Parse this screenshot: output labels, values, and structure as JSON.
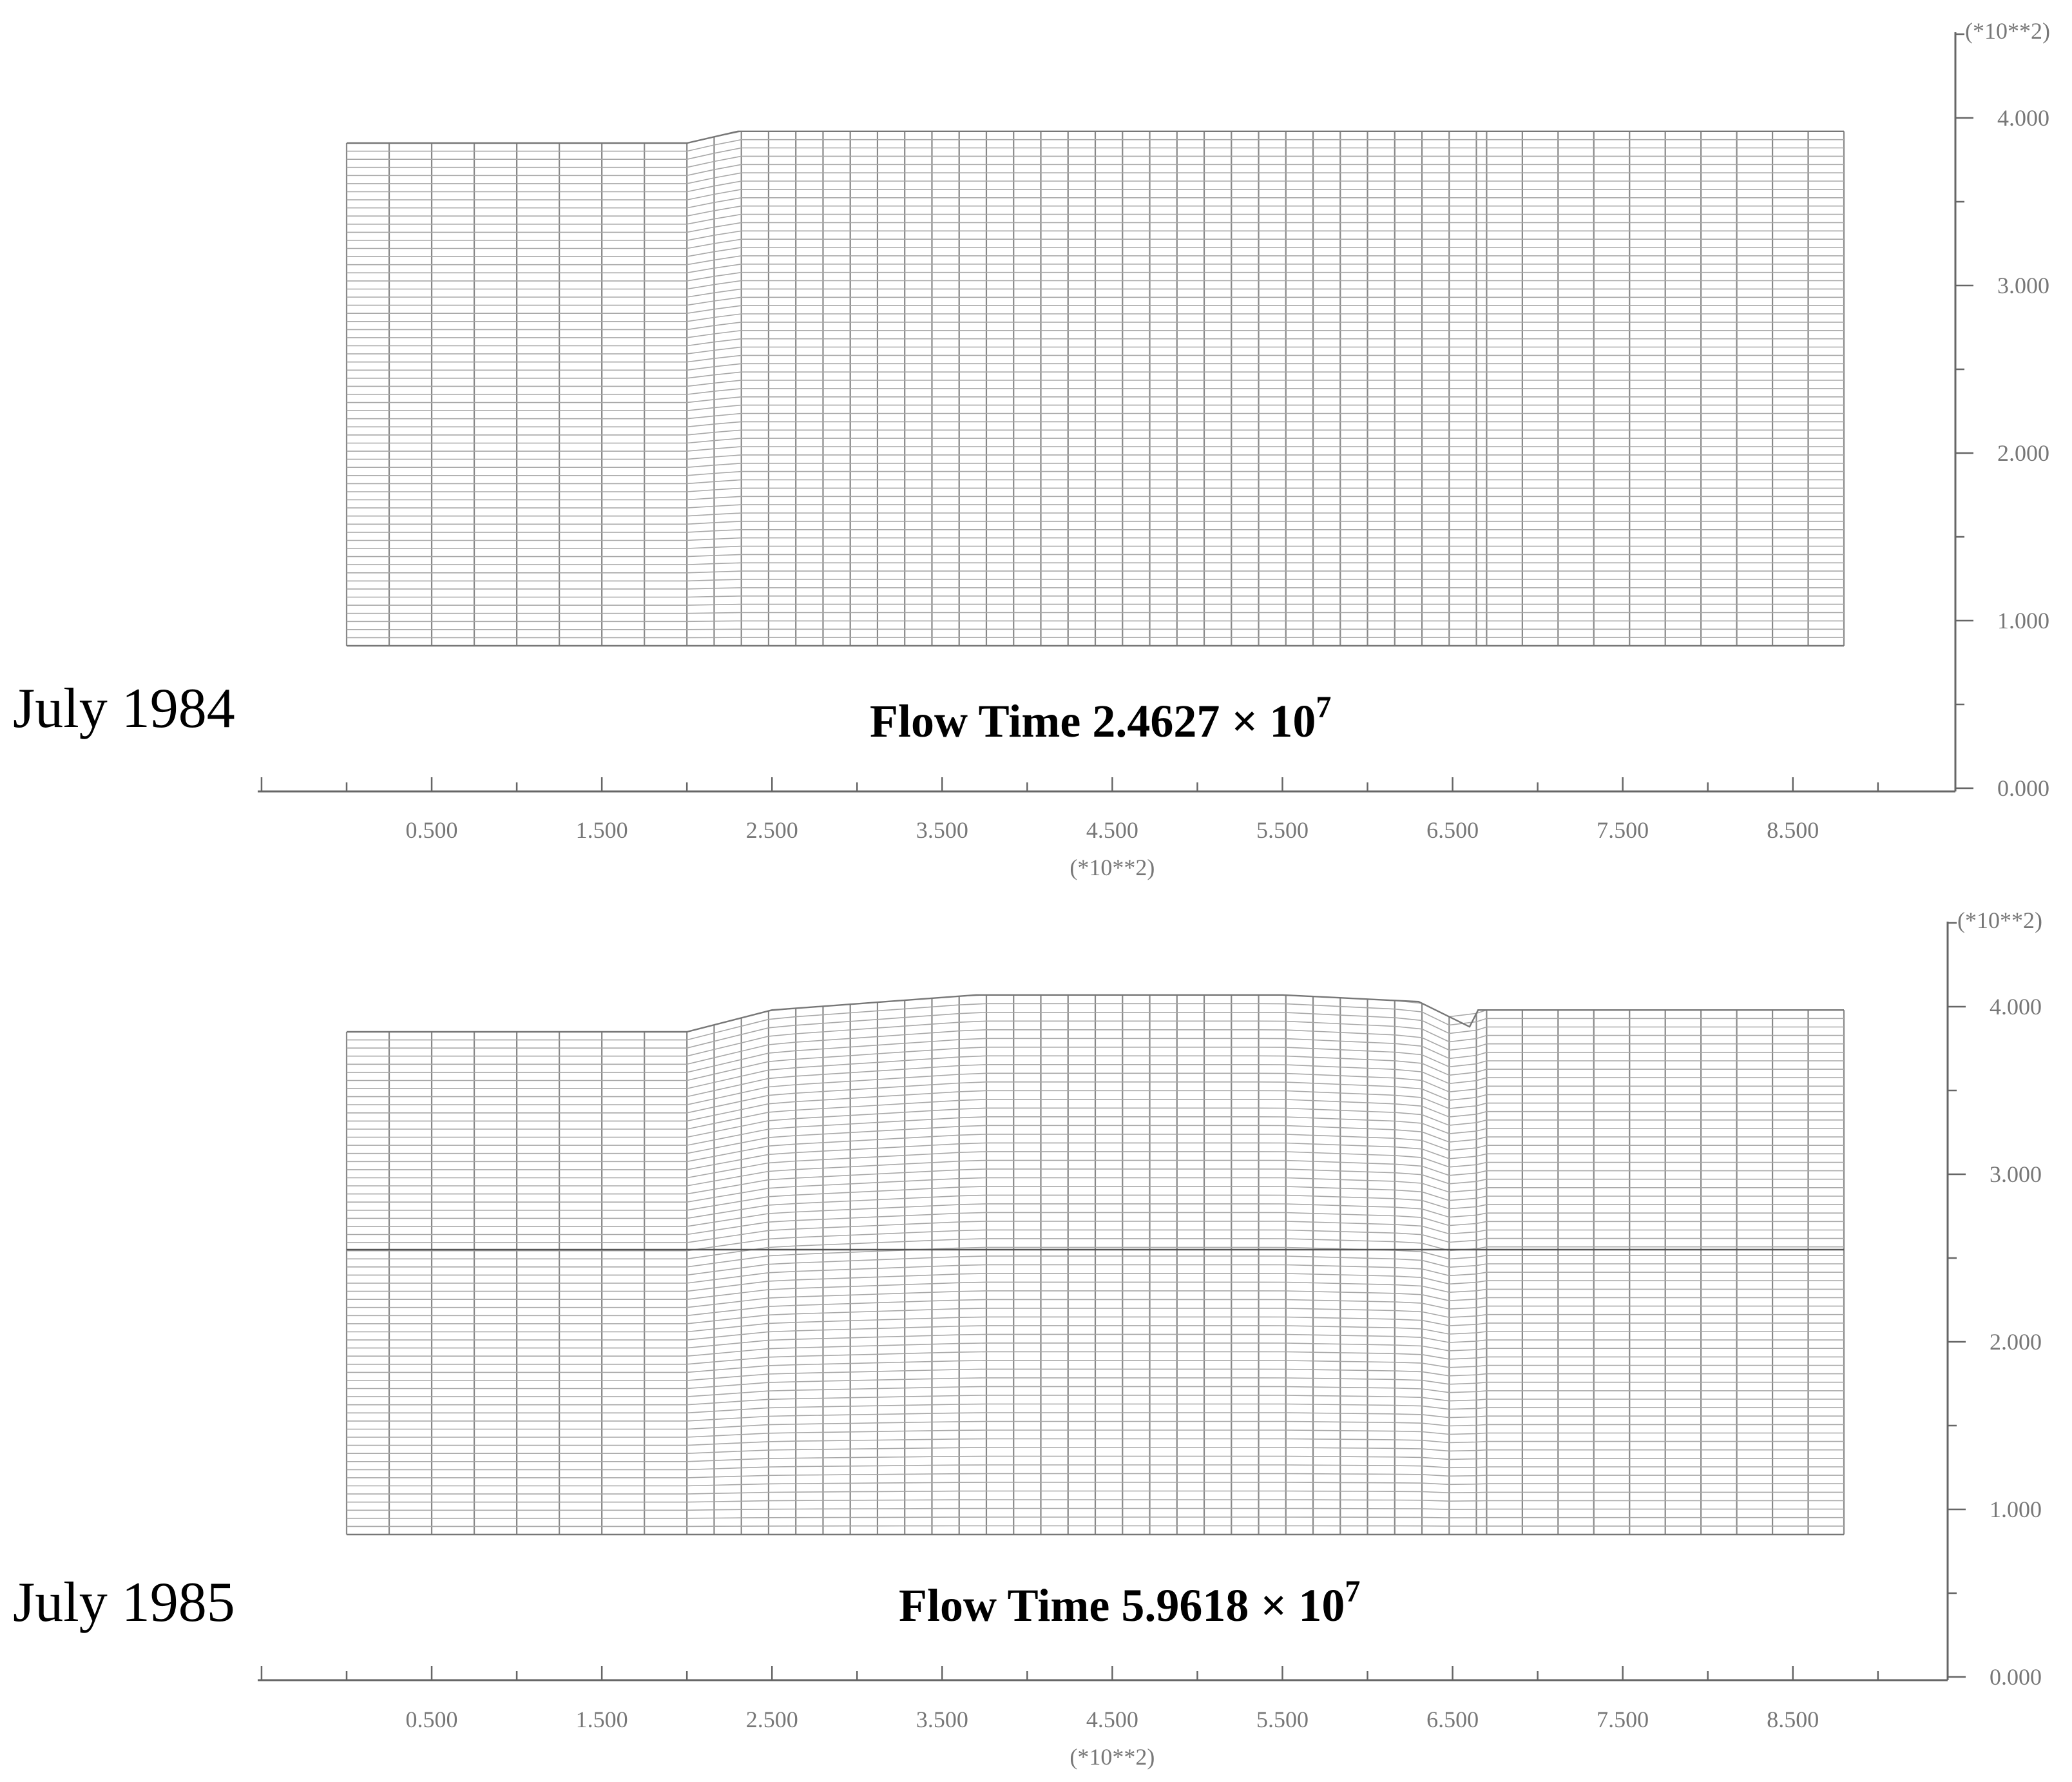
{
  "panels": [
    {
      "id": "panel-1984",
      "date_label": "July 1984",
      "flow_time_prefix": "Flow Time 2.4627 × 10",
      "flow_time_exponent": "7",
      "x_axis": {
        "ticks": [
          "0.500",
          "1.500",
          "2.500",
          "3.500",
          "4.500",
          "5.500",
          "6.500",
          "7.500",
          "8.500"
        ],
        "multiplier": "(*10**2)",
        "range": [
          -0.5,
          9.5
        ]
      },
      "y_axis": {
        "ticks": [
          "0.000",
          "1.000",
          "2.000",
          "3.000",
          "4.000"
        ],
        "multiplier": "(*10**2)",
        "range": [
          0,
          4.6
        ]
      },
      "mesh": {
        "x_extent": [
          0.0,
          8.8
        ],
        "base": 0.85,
        "surface_profile": [
          [
            0.0,
            3.85
          ],
          [
            2.0,
            3.85
          ],
          [
            2.3,
            3.92
          ],
          [
            8.8,
            3.92
          ]
        ],
        "has_mid_line": false
      }
    },
    {
      "id": "panel-1985",
      "date_label": "July 1985",
      "flow_time_prefix": "Flow Time 5.9618 × 10",
      "flow_time_exponent": "7",
      "x_axis": {
        "ticks": [
          "0.500",
          "1.500",
          "2.500",
          "3.500",
          "4.500",
          "5.500",
          "6.500",
          "7.500",
          "8.500"
        ],
        "multiplier": "(*10**2)",
        "range": [
          -0.5,
          9.5
        ]
      },
      "y_axis": {
        "ticks": [
          "0.000",
          "1.000",
          "2.000",
          "3.000",
          "4.000"
        ],
        "multiplier": "(*10**2)",
        "range": [
          0,
          4.6
        ]
      },
      "mesh": {
        "x_extent": [
          0.0,
          8.8
        ],
        "base": 0.85,
        "surface_profile": [
          [
            0.0,
            3.85
          ],
          [
            2.0,
            3.85
          ],
          [
            2.5,
            3.98
          ],
          [
            3.7,
            4.07
          ],
          [
            5.5,
            4.07
          ],
          [
            6.3,
            4.03
          ],
          [
            6.6,
            3.88
          ],
          [
            6.65,
            3.98
          ],
          [
            8.8,
            3.98
          ]
        ],
        "has_mid_line": true,
        "mid_line_y": 2.55
      }
    }
  ]
}
